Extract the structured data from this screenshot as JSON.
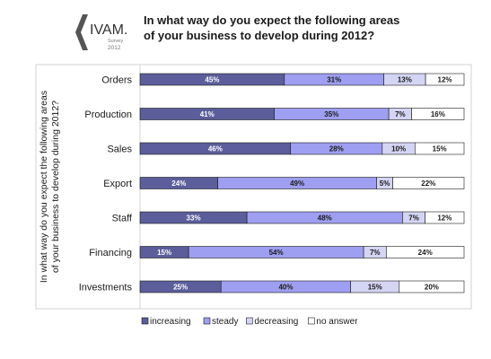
{
  "logo": {
    "brand": "IVAM.",
    "sub": "Survey",
    "year": "2012"
  },
  "chart_data": {
    "type": "bar",
    "stacked": true,
    "orientation": "horizontal",
    "title": "In what way do you expect the following areas of your business to develop during 2012?",
    "title_lines": [
      "In what way do you expect the following areas",
      "of your business to develop during 2012?"
    ],
    "ylabel_lines": [
      "In what way do you expect the following areas",
      "of your business to develop during 2012?"
    ],
    "categories": [
      "Orders",
      "Production",
      "Sales",
      "Export",
      "Staff",
      "Financing",
      "Investments"
    ],
    "series": [
      {
        "name": "increasing",
        "color": "#5b5e9b",
        "label_color": "#ffffff",
        "values": [
          45,
          41,
          46,
          24,
          33,
          15,
          25
        ]
      },
      {
        "name": "steady",
        "color": "#9e9ff0",
        "label_color": "#1a1a1a",
        "values": [
          31,
          35,
          28,
          49,
          48,
          54,
          40
        ]
      },
      {
        "name": "decreasing",
        "color": "#d4d4f3",
        "label_color": "#1a1a1a",
        "values": [
          13,
          7,
          10,
          5,
          7,
          7,
          15
        ]
      },
      {
        "name": "no answer",
        "color": "#ffffff",
        "label_color": "#1a1a1a",
        "values": [
          12,
          16,
          15,
          22,
          12,
          24,
          20
        ]
      }
    ],
    "value_suffix": "%",
    "xlim": [
      0,
      100
    ],
    "grid": false,
    "legend_position": "bottom"
  }
}
